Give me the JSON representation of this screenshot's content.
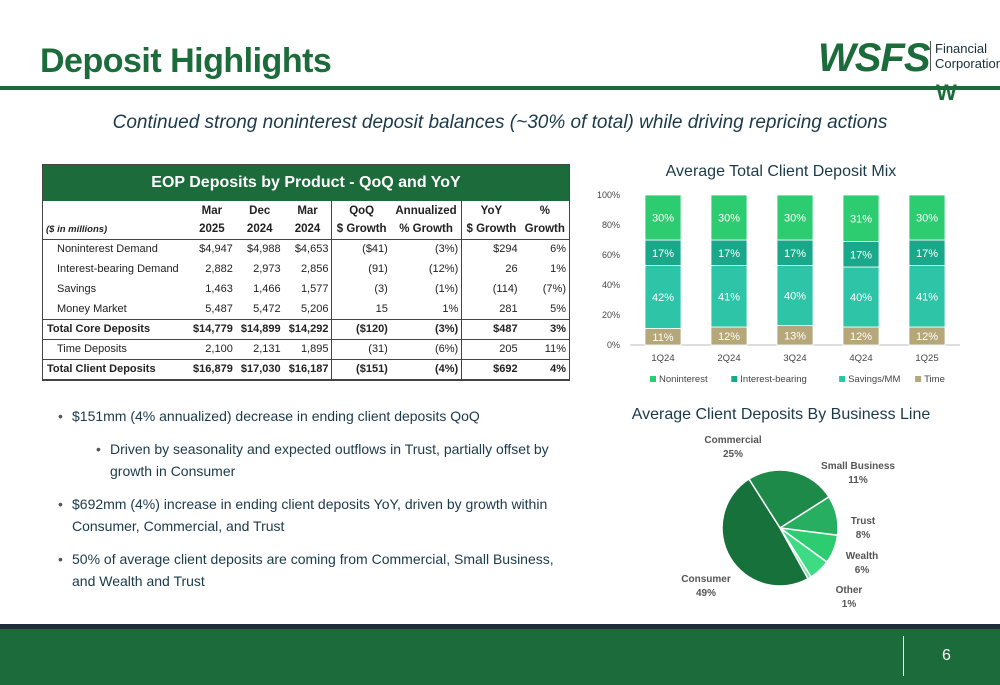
{
  "title": "Deposit Highlights",
  "logo": {
    "word": "WSFS",
    "line1": "Financial",
    "line2": "Corporation",
    "mark": "W"
  },
  "subtitle": "Continued strong noninterest deposit balances (~30% of total) while driving repricing actions",
  "table": {
    "heading": "EOP Deposits by Product - QoQ and YoY",
    "unit_label": "($ in millions)",
    "col_top": [
      "Mar",
      "Dec",
      "Mar",
      "QoQ",
      "Annualized",
      "YoY",
      "%"
    ],
    "col_bottom": [
      "2025",
      "2024",
      "2024",
      "$ Growth",
      "% Growth",
      "$ Growth",
      "Growth"
    ],
    "rows": [
      {
        "label": "Noninterest Demand",
        "cells": [
          "$4,947",
          "$4,988",
          "$4,653",
          "($41)",
          "(3%)",
          "$294",
          "6%"
        ]
      },
      {
        "label": "Interest-bearing Demand",
        "cells": [
          "2,882",
          "2,973",
          "2,856",
          "(91)",
          "(12%)",
          "26",
          "1%"
        ]
      },
      {
        "label": "Savings",
        "cells": [
          "1,463",
          "1,466",
          "1,577",
          "(3)",
          "(1%)",
          "(114)",
          "(7%)"
        ]
      },
      {
        "label": "Money Market",
        "cells": [
          "5,487",
          "5,472",
          "5,206",
          "15",
          "1%",
          "281",
          "5%"
        ]
      },
      {
        "label": "Total Core Deposits",
        "cells": [
          "$14,779",
          "$14,899",
          "$14,292",
          "($120)",
          "(3%)",
          "$487",
          "3%"
        ]
      },
      {
        "label": "Time Deposits",
        "cells": [
          "2,100",
          "2,131",
          "1,895",
          "(31)",
          "(6%)",
          "205",
          "11%"
        ]
      },
      {
        "label": "Total Client Deposits",
        "cells": [
          "$16,879",
          "$17,030",
          "$16,187",
          "($151)",
          "(4%)",
          "$692",
          "4%"
        ]
      }
    ]
  },
  "bullets": [
    {
      "text": "$151mm (4% annualized) decrease in ending client deposits QoQ"
    },
    {
      "text": "Driven by seasonality and expected outflows in Trust, partially offset by growth in Consumer"
    },
    {
      "text": "$692mm (4%) increase in ending client deposits YoY, driven by growth within Consumer, Commercial, and Trust"
    },
    {
      "text": "50% of average client deposits are coming from Commercial, Small Business, and Wealth and Trust"
    }
  ],
  "chart_data": [
    {
      "type": "bar",
      "stacked": true,
      "title": "Average Total Client Deposit Mix",
      "categories": [
        "1Q24",
        "2Q24",
        "3Q24",
        "4Q24",
        "1Q25"
      ],
      "y_ticks": [
        "0%",
        "20%",
        "40%",
        "60%",
        "80%",
        "100%"
      ],
      "ylim": [
        0,
        100
      ],
      "legend_position": "bottom",
      "series": [
        {
          "name": "Time",
          "color": "#b5a77a",
          "values": [
            11,
            12,
            13,
            12,
            12
          ],
          "labels": [
            "11%",
            "12%",
            "13%",
            "12%",
            "12%"
          ]
        },
        {
          "name": "Savings/MM",
          "color": "#2ec4a8",
          "values": [
            42,
            41,
            40,
            40,
            41
          ],
          "labels": [
            "42%",
            "41%",
            "40%",
            "40%",
            "41%"
          ]
        },
        {
          "name": "Interest-bearing",
          "color": "#1aa88a",
          "values": [
            17,
            17,
            17,
            17,
            17
          ],
          "labels": [
            "17%",
            "17%",
            "17%",
            "17%",
            "17%"
          ]
        },
        {
          "name": "Noninterest",
          "color": "#2ecc71",
          "values": [
            30,
            30,
            30,
            31,
            30
          ],
          "labels": [
            "30%",
            "30%",
            "30%",
            "31%",
            "30%"
          ]
        }
      ],
      "legend": [
        "Noninterest",
        "Interest-bearing",
        "Savings/MM",
        "Time"
      ]
    },
    {
      "type": "pie",
      "title": "Average Client Deposits By Business Line",
      "slices": [
        {
          "name": "Commercial",
          "value": 25,
          "label": "25%",
          "color": "#1e8a4a"
        },
        {
          "name": "Small Business",
          "value": 11,
          "label": "11%",
          "color": "#27ae60"
        },
        {
          "name": "Trust",
          "value": 8,
          "label": "8%",
          "color": "#2ecc71"
        },
        {
          "name": "Wealth",
          "value": 6,
          "label": "6%",
          "color": "#3ddc84"
        },
        {
          "name": "Other",
          "value": 1,
          "label": "1%",
          "color": "#7be3a5"
        },
        {
          "name": "Consumer",
          "value": 49,
          "label": "49%",
          "color": "#17713b"
        }
      ]
    }
  ],
  "page_number": "6"
}
